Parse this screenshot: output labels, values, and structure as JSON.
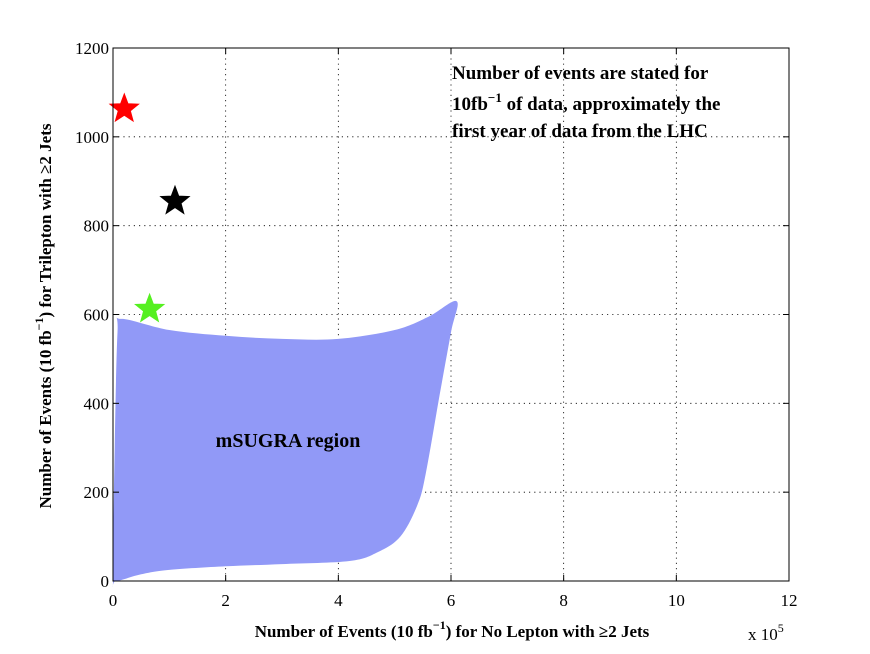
{
  "chart_data": {
    "type": "scatter",
    "title": "",
    "xlabel_main": "Number of Events (10 fb",
    "xlabel_sup": "−1",
    "xlabel_rest": ") for No Lepton with  ≥2 Jets",
    "ylabel_main": "Number of Events (10 fb",
    "ylabel_sup": "−1",
    "ylabel_rest": ") for Trilepton with  ≥2 Jets",
    "x_multiplier": "x 10",
    "x_multiplier_exp": "5",
    "xlim": [
      0,
      12
    ],
    "ylim": [
      0,
      1200
    ],
    "x_ticks": [
      0,
      2,
      4,
      6,
      8,
      10,
      12
    ],
    "y_ticks": [
      0,
      200,
      400,
      600,
      800,
      1000,
      1200
    ],
    "x_tick_labels": [
      "0",
      "2",
      "4",
      "6",
      "8",
      "10",
      "12"
    ],
    "y_tick_labels": [
      "0",
      "200",
      "400",
      "600",
      "800",
      "1000",
      "1200"
    ],
    "grid": true,
    "region": {
      "name": "mSUGRA region",
      "color": "#9199f7",
      "outline": [
        [
          0.0,
          12
        ],
        [
          0.03,
          300
        ],
        [
          0.08,
          560
        ],
        [
          0.15,
          590
        ],
        [
          1.0,
          565
        ],
        [
          2.0,
          552
        ],
        [
          3.0,
          545
        ],
        [
          4.0,
          545
        ],
        [
          5.0,
          565
        ],
        [
          5.6,
          595
        ],
        [
          6.1,
          630
        ],
        [
          6.0,
          560
        ],
        [
          5.8,
          420
        ],
        [
          5.55,
          240
        ],
        [
          5.4,
          170
        ],
        [
          5.1,
          100
        ],
        [
          4.7,
          65
        ],
        [
          4.2,
          45
        ],
        [
          3.0,
          38
        ],
        [
          2.0,
          33
        ],
        [
          1.0,
          25
        ],
        [
          0.5,
          15
        ],
        [
          0.05,
          0
        ]
      ]
    },
    "markers": [
      {
        "name": "red-star",
        "x": 0.2,
        "y": 1063,
        "color": "#ff0000"
      },
      {
        "name": "black-star",
        "x": 1.1,
        "y": 855,
        "color": "#000000"
      },
      {
        "name": "green-star",
        "x": 0.65,
        "y": 612,
        "color": "#55f020"
      }
    ],
    "annotation": {
      "line1": "Number of events are stated for",
      "line2_a": "10fb",
      "line2_sup": "−1",
      "line2_b": " of data, approximately the",
      "line3": "first year of data from the LHC"
    }
  }
}
